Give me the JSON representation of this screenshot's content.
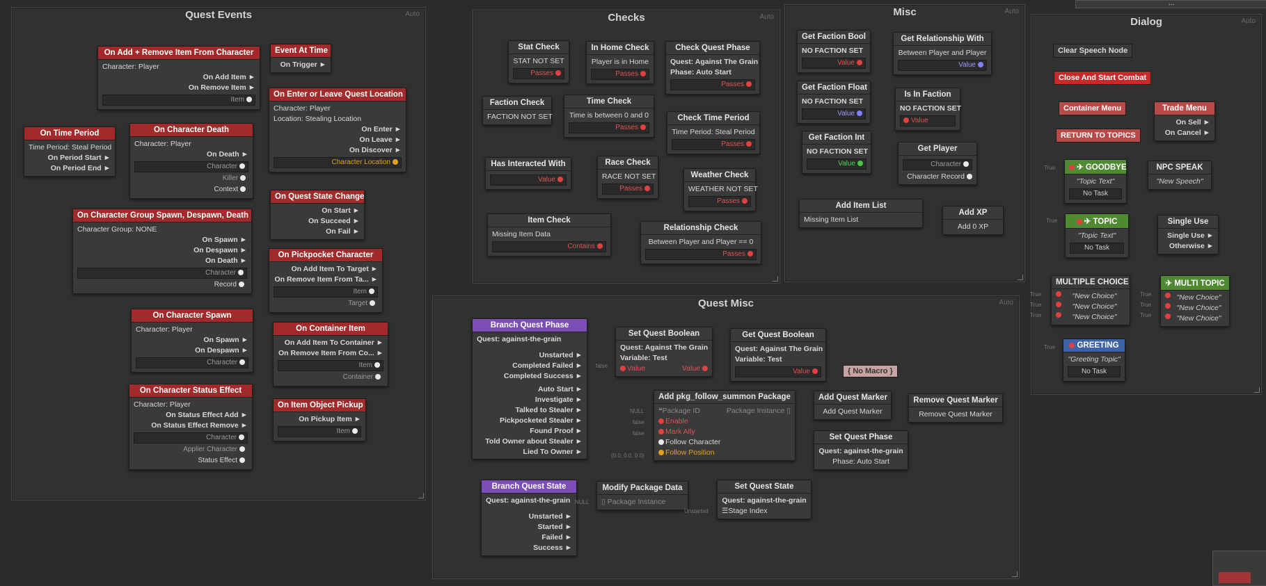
{
  "groups": {
    "quest_events": "Quest Events",
    "checks": "Checks",
    "misc": "Misc",
    "dialog": "Dialog",
    "quest_misc": "Quest Misc",
    "auto": "Auto"
  },
  "ellipsis": "...",
  "qe": {
    "add_remove": {
      "title": "On Add + Remove Item From Character",
      "char": "Character: Player",
      "o1": "On Add Item ►",
      "o2": "On Remove Item ►",
      "i1": "Item"
    },
    "event_time": {
      "title": "Event At Time",
      "o1": "On Trigger ►"
    },
    "enter_leave": {
      "title": "On Enter or Leave Quest Location",
      "char": "Character: Player",
      "loc": "Location: Stealing Location",
      "o1": "On Enter ►",
      "o2": "On Leave ►",
      "o3": "On Discover ►",
      "i1": "Character Location"
    },
    "time_period": {
      "title": "On Time Period",
      "tp": "Time Period: Steal Period",
      "o1": "On Period Start ►",
      "o2": "On Period End ►"
    },
    "char_death": {
      "title": "On Character Death",
      "char": "Character: Player",
      "o1": "On Death ►",
      "i1": "Character",
      "i2": "Killer",
      "i3": "Context"
    },
    "state_change": {
      "title": "On Quest State Change",
      "o1": "On Start ►",
      "o2": "On Succeed ►",
      "o3": "On Fail ►"
    },
    "group_spawn": {
      "title": "On Character Group Spawn, Despawn, Death",
      "grp": "Character Group: NONE",
      "o1": "On Spawn ►",
      "o2": "On Despawn ►",
      "o3": "On Death ►",
      "i1": "Character",
      "i2": "Record"
    },
    "pickpocket": {
      "title": "On Pickpocket Character",
      "o1": "On Add Item To Target ►",
      "o2": "On Remove Item From Ta... ►",
      "i1": "Item",
      "i2": "Target"
    },
    "char_spawn": {
      "title": "On Character Spawn",
      "char": "Character: Player",
      "o1": "On Spawn ►",
      "o2": "On Despawn ►",
      "i1": "Character"
    },
    "container": {
      "title": "On Container Item",
      "o1": "On Add Item To Container ►",
      "o2": "On Remove Item From Co... ►",
      "i1": "Item",
      "i2": "Container"
    },
    "status_effect": {
      "title": "On Character Status Effect",
      "char": "Character: Player",
      "o1": "On Status Effect Add ►",
      "o2": "On Status Effect Remove ►",
      "i1": "Character",
      "i2": "Applier Character",
      "i3": "Status Effect"
    },
    "pickup": {
      "title": "On Item Object Pickup",
      "o1": "On Pickup Item ►",
      "i1": "Item"
    }
  },
  "checks": {
    "stat": {
      "title": "Stat Check",
      "body": "STAT NOT SET",
      "out": "Passes"
    },
    "home": {
      "title": "In Home Check",
      "body": "Player is in Home",
      "out": "Passes"
    },
    "quest_phase": {
      "title": "Check Quest Phase",
      "l1": "Quest: Against The Grain",
      "l2": "Phase: Auto Start",
      "out": "Passes"
    },
    "faction": {
      "title": "Faction Check",
      "body": "FACTION NOT SET"
    },
    "time": {
      "title": "Time Check",
      "body": "Time is between 0 and 0",
      "out": "Passes"
    },
    "time_period": {
      "title": "Check Time Period",
      "body": "Time Period: Steal Period",
      "out": "Passes"
    },
    "interacted": {
      "title": "Has Interacted With",
      "out": "Value"
    },
    "race": {
      "title": "Race Check",
      "body": "RACE NOT SET",
      "out": "Passes"
    },
    "weather": {
      "title": "Weather Check",
      "body": "WEATHER NOT SET",
      "out": "Passes"
    },
    "item": {
      "title": "Item Check",
      "body": "Missing Item Data",
      "out": "Contains"
    },
    "relationship": {
      "title": "Relationship Check",
      "body": "Between Player and Player  ==  0",
      "out": "Passes"
    }
  },
  "misc": {
    "faction_bool": {
      "title": "Get Faction Bool",
      "body": "NO FACTION SET",
      "out": "Value"
    },
    "relationship": {
      "title": "Get Relationship With",
      "body": "Between Player and Player",
      "out": "Value"
    },
    "faction_float": {
      "title": "Get Faction Float",
      "body": "NO FACTION SET",
      "out": "Value"
    },
    "in_faction": {
      "title": "Is In Faction",
      "body": "NO FACTION SET",
      "out": "Value"
    },
    "faction_int": {
      "title": "Get Faction Int",
      "body": "NO FACTION SET",
      "out": "Value"
    },
    "get_player": {
      "title": "Get Player",
      "o1": "Character",
      "o2": "Character Record"
    },
    "add_item_list": {
      "title": "Add Item List",
      "body": "Missing Item List"
    },
    "add_xp": {
      "title": "Add XP",
      "body": "Add 0 XP"
    }
  },
  "dialog": {
    "clear_speech": "Clear Speech Node",
    "close_combat": "Close And Start Combat",
    "container_menu": "Container Menu",
    "trade_menu": {
      "title": "Trade Menu",
      "o1": "On Sell ►",
      "o2": "On Cancel ►"
    },
    "return_topics": "RETURN TO TOPICS",
    "goodbye": {
      "title": "GOODBYE",
      "text": "\"Topic Text\"",
      "task": "No Task"
    },
    "npc_speak": {
      "title": "NPC SPEAK",
      "text": "\"New Speech\""
    },
    "topic": {
      "title": "TOPIC",
      "text": "\"Topic Text\"",
      "task": "No Task"
    },
    "single_use": {
      "title": "Single Use",
      "o1": "Single Use ►",
      "o2": "Otherwise ►"
    },
    "multiple_choice": {
      "title": "MULTIPLE CHOICE",
      "c1": "\"New Choice\"",
      "c2": "\"New Choice\"",
      "c3": "\"New Choice\""
    },
    "multi_topic": {
      "title": "MULTI TOPIC",
      "c1": "\"New Choice\"",
      "c2": "\"New Choice\"",
      "c3": "\"New Choice\""
    },
    "greeting": {
      "title": "GREETING",
      "text": "\"Greeting Topic\"",
      "task": "No Task"
    },
    "true": "True"
  },
  "quest_misc": {
    "branch_phase": {
      "title": "Branch Quest Phase",
      "quest": "Quest: against-the-grain",
      "o": [
        "Unstarted ►",
        "Completed Failed ►",
        "Completed Success ►",
        "Auto Start ►",
        "Investigate ►",
        "Talked to Stealer ►",
        "Pickpocketed Stealer ►",
        "Found Proof ►",
        "Told Owner about Stealer ►",
        "Lied To Owner ►"
      ]
    },
    "set_bool": {
      "title": "Set Quest Boolean",
      "l1": "Quest: Against The Grain",
      "l2": "Variable: Test",
      "in": "Value",
      "out": "Value",
      "tag": "false"
    },
    "get_bool": {
      "title": "Get Quest Boolean",
      "l1": "Quest: Against The Grain",
      "l2": "Variable: Test",
      "out": "Value"
    },
    "no_macro": "{ No Macro }",
    "add_pkg": {
      "title": "Add pkg_follow_summon Package",
      "pid": "Package ID",
      "pinst": "Package Instance",
      "r1": "Enable",
      "r2": "Mark Ally",
      "r3": "Follow Character",
      "r4": "Follow Position",
      "t0": "NULL",
      "t1": "false",
      "t2": "false",
      "t4": "(0.0, 0.0, 0.0)"
    },
    "add_marker": {
      "title": "Add Quest Marker",
      "body": "Add Quest Marker"
    },
    "remove_marker": {
      "title": "Remove Quest Marker",
      "body": "Remove Quest Marker"
    },
    "set_phase": {
      "title": "Set Quest Phase",
      "l1": "Quest: against-the-grain",
      "l2": "Phase: Auto Start"
    },
    "branch_state": {
      "title": "Branch Quest State",
      "quest": "Quest: against-the-grain",
      "o": [
        "Unstarted ►",
        "Started ►",
        "Failed ►",
        "Success ►"
      ]
    },
    "modify_pkg": {
      "title": "Modify Package Data",
      "body": "Package Instance",
      "tag": "NULL"
    },
    "set_state": {
      "title": "Set Quest State",
      "quest": "Quest: against-the-grain",
      "body": "Stage Index",
      "tag": "Unstarted"
    }
  }
}
